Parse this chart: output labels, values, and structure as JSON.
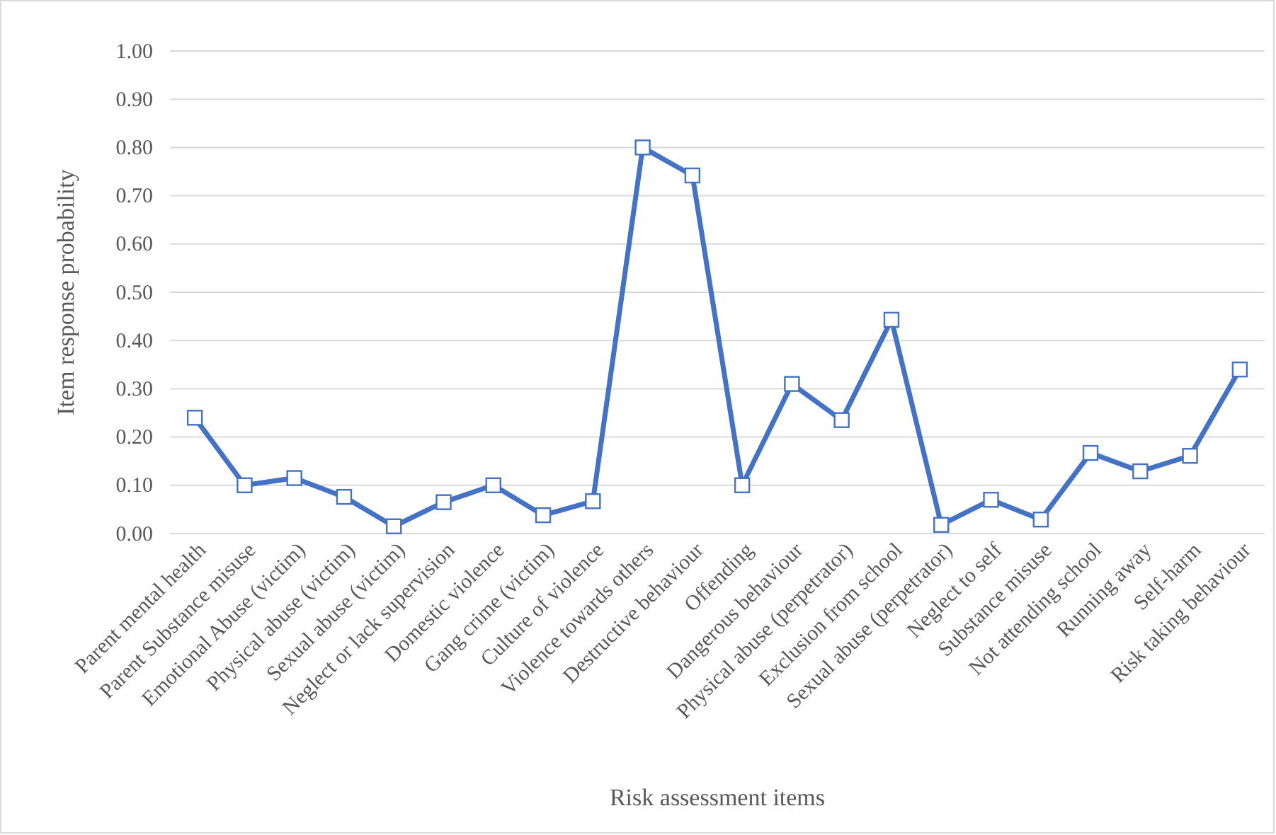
{
  "chart_data": {
    "type": "line",
    "xlabel": "Risk assessment items",
    "ylabel": "Item response probability",
    "categories": [
      "Parent mental health",
      "Parent Substance misuse",
      "Emotional Abuse (victim)",
      "Physical abuse (victim)",
      "Sexual abuse (victim)",
      "Neglect or lack supervision",
      "Domestic violence",
      "Gang crime (victim)",
      "Culture of violence",
      "Violence towards others",
      "Destructive behaviour",
      "Offending",
      "Dangerous behaviour",
      "Physical abuse (perpetrator)",
      "Exclusion from school",
      "Sexual abuse (perpetrator)",
      "Neglect to self",
      "Substance misuse",
      "Not attending school",
      "Running away",
      "Self-harm",
      "Risk taking behaviour"
    ],
    "series": [
      {
        "color": "#4472c4",
        "values": [
          0.24,
          0.1,
          0.115,
          0.076,
          0.015,
          0.065,
          0.1,
          0.038,
          0.067,
          0.8,
          0.742,
          0.1,
          0.31,
          0.235,
          0.443,
          0.018,
          0.07,
          0.029,
          0.167,
          0.129,
          0.161,
          0.34
        ]
      }
    ],
    "ylim": [
      0,
      1
    ],
    "yticks": [
      {
        "value": 0,
        "label": "0.00"
      },
      {
        "value": 0.1,
        "label": "0.10"
      },
      {
        "value": 0.2,
        "label": "0.20"
      },
      {
        "value": 0.3,
        "label": "0.30"
      },
      {
        "value": 0.4,
        "label": "0.40"
      },
      {
        "value": 0.5,
        "label": "0.50"
      },
      {
        "value": 0.6,
        "label": "0.60"
      },
      {
        "value": 0.7,
        "label": "0.70"
      },
      {
        "value": 0.8,
        "label": "0.80"
      },
      {
        "value": 0.9,
        "label": "0.90"
      },
      {
        "value": 1,
        "label": "1.00"
      }
    ],
    "grid": "y",
    "marker": "square",
    "line_style": "solid"
  }
}
